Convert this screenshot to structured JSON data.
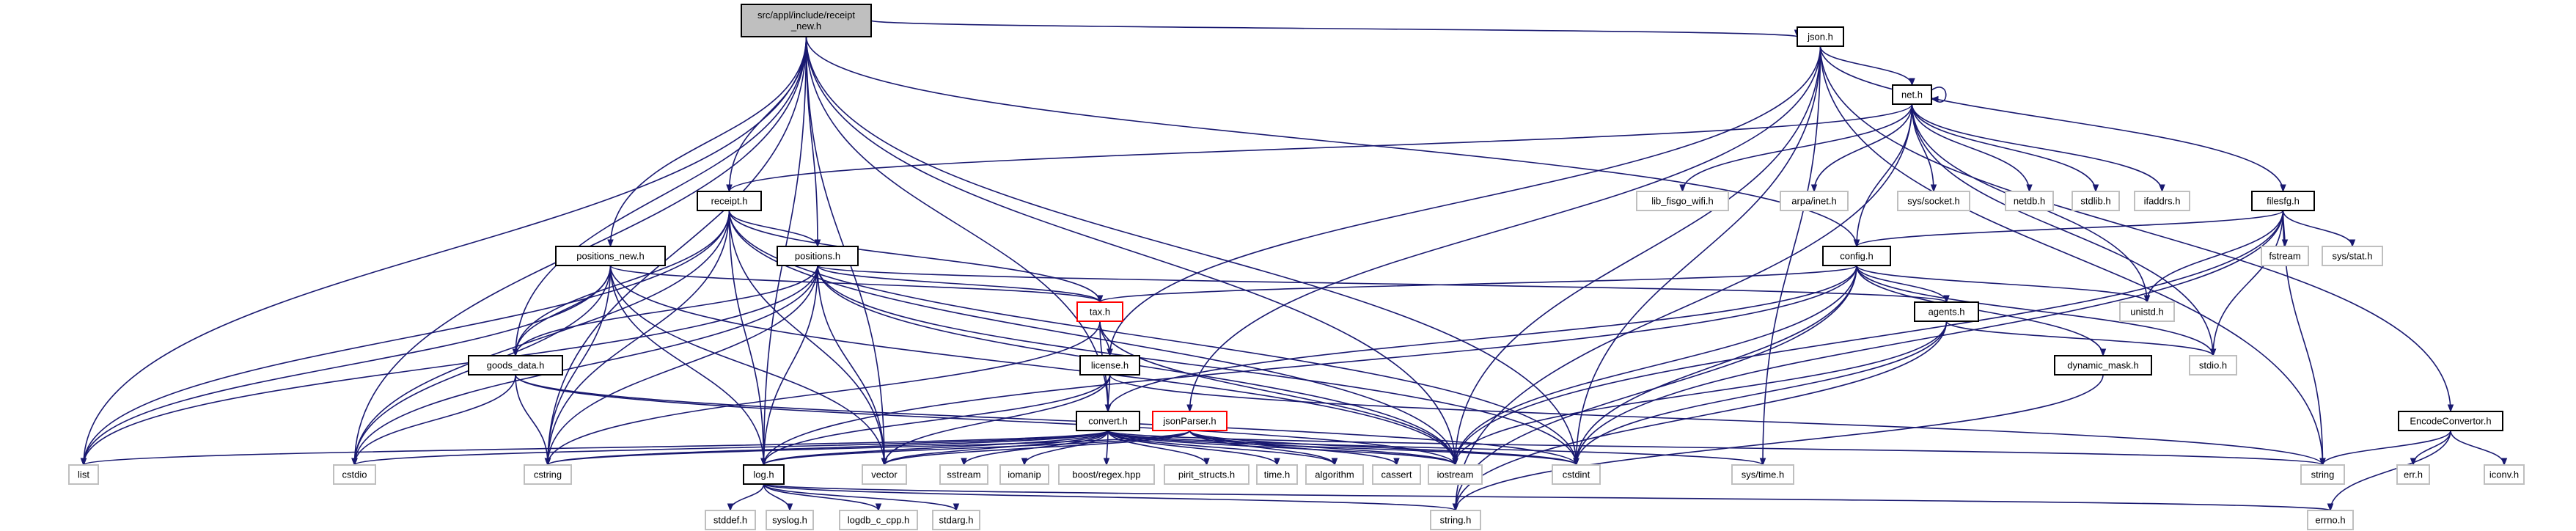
{
  "nodes": [
    {
      "id": "root",
      "label": "src/appl/include/receipt\n_new.h",
      "style": "root"
    },
    {
      "id": "json_h",
      "label": "json.h",
      "style": "normal"
    },
    {
      "id": "net_h",
      "label": "net.h",
      "style": "normal"
    },
    {
      "id": "receipt_h",
      "label": "receipt.h",
      "style": "normal"
    },
    {
      "id": "positions_new_h",
      "label": "positions_new.h",
      "style": "normal"
    },
    {
      "id": "positions_h",
      "label": "positions.h",
      "style": "normal"
    },
    {
      "id": "filesfg_h",
      "label": "filesfg.h",
      "style": "normal"
    },
    {
      "id": "config_h",
      "label": "config.h",
      "style": "normal"
    },
    {
      "id": "tax_h",
      "label": "tax.h",
      "style": "red"
    },
    {
      "id": "agents_h",
      "label": "agents.h",
      "style": "normal"
    },
    {
      "id": "goods_data_h",
      "label": "goods_data.h",
      "style": "normal"
    },
    {
      "id": "license_h",
      "label": "license.h",
      "style": "normal"
    },
    {
      "id": "dynamic_mask_h",
      "label": "dynamic_mask.h",
      "style": "normal"
    },
    {
      "id": "convert_h",
      "label": "convert.h",
      "style": "normal"
    },
    {
      "id": "jsonParser_h",
      "label": "jsonParser.h",
      "style": "red"
    },
    {
      "id": "EncodeConvertor_h",
      "label": "EncodeConvertor.h",
      "style": "normal"
    },
    {
      "id": "log_h",
      "label": "log.h",
      "style": "normal"
    },
    {
      "id": "lib_fisgo_wifi_h",
      "label": "lib_fisgo_wifi.h",
      "style": "leaf"
    },
    {
      "id": "arpa_inet_h",
      "label": "arpa/inet.h",
      "style": "leaf"
    },
    {
      "id": "sys_socket_h",
      "label": "sys/socket.h",
      "style": "leaf"
    },
    {
      "id": "netdb_h",
      "label": "netdb.h",
      "style": "leaf"
    },
    {
      "id": "stdlib_h",
      "label": "stdlib.h",
      "style": "leaf"
    },
    {
      "id": "ifaddrs_h",
      "label": "ifaddrs.h",
      "style": "leaf"
    },
    {
      "id": "fstream",
      "label": "fstream",
      "style": "leaf"
    },
    {
      "id": "sys_stat_h",
      "label": "sys/stat.h",
      "style": "leaf"
    },
    {
      "id": "unistd_h",
      "label": "unistd.h",
      "style": "leaf"
    },
    {
      "id": "stdio_h",
      "label": "stdio.h",
      "style": "leaf"
    },
    {
      "id": "list",
      "label": "list",
      "style": "leaf"
    },
    {
      "id": "cstdio",
      "label": "cstdio",
      "style": "leaf"
    },
    {
      "id": "cstring",
      "label": "cstring",
      "style": "leaf"
    },
    {
      "id": "vector",
      "label": "vector",
      "style": "leaf"
    },
    {
      "id": "sstream",
      "label": "sstream",
      "style": "leaf"
    },
    {
      "id": "iomanip",
      "label": "iomanip",
      "style": "leaf"
    },
    {
      "id": "boost_regex_hpp",
      "label": "boost/regex.hpp",
      "style": "leaf"
    },
    {
      "id": "pirit_structs_h",
      "label": "pirit_structs.h",
      "style": "leaf"
    },
    {
      "id": "time_h",
      "label": "time.h",
      "style": "leaf"
    },
    {
      "id": "algorithm",
      "label": "algorithm",
      "style": "leaf"
    },
    {
      "id": "cassert",
      "label": "cassert",
      "style": "leaf"
    },
    {
      "id": "iostream",
      "label": "iostream",
      "style": "leaf"
    },
    {
      "id": "cstdint",
      "label": "cstdint",
      "style": "leaf"
    },
    {
      "id": "sys_time_h",
      "label": "sys/time.h",
      "style": "leaf"
    },
    {
      "id": "string",
      "label": "string",
      "style": "leaf"
    },
    {
      "id": "err_h",
      "label": "err.h",
      "style": "leaf"
    },
    {
      "id": "iconv_h",
      "label": "iconv.h",
      "style": "leaf"
    },
    {
      "id": "stddef_h",
      "label": "stddef.h",
      "style": "leaf"
    },
    {
      "id": "syslog_h",
      "label": "syslog.h",
      "style": "leaf"
    },
    {
      "id": "logdb_c_cpp_h",
      "label": "logdb_c_cpp.h",
      "style": "leaf"
    },
    {
      "id": "stdarg_h",
      "label": "stdarg.h",
      "style": "leaf"
    },
    {
      "id": "string_h",
      "label": "string.h",
      "style": "leaf"
    },
    {
      "id": "errno_h",
      "label": "errno.h",
      "style": "leaf"
    }
  ],
  "edges": [
    [
      "root",
      "json_h"
    ],
    [
      "root",
      "receipt_h"
    ],
    [
      "root",
      "positions_new_h"
    ],
    [
      "root",
      "positions_h"
    ],
    [
      "root",
      "goods_data_h"
    ],
    [
      "root",
      "config_h"
    ],
    [
      "root",
      "convert_h"
    ],
    [
      "root",
      "log_h"
    ],
    [
      "root",
      "list"
    ],
    [
      "root",
      "cstdio"
    ],
    [
      "root",
      "cstring"
    ],
    [
      "root",
      "vector"
    ],
    [
      "root",
      "iostream"
    ],
    [
      "root",
      "cstdint"
    ],
    [
      "json_h",
      "net_h"
    ],
    [
      "json_h",
      "filesfg_h"
    ],
    [
      "json_h",
      "license_h"
    ],
    [
      "json_h",
      "jsonParser_h"
    ],
    [
      "json_h",
      "EncodeConvertor_h"
    ],
    [
      "json_h",
      "iostream"
    ],
    [
      "json_h",
      "cstdint"
    ],
    [
      "json_h",
      "string"
    ],
    [
      "json_h",
      "sys_time_h"
    ],
    [
      "net_h",
      "net_h"
    ],
    [
      "net_h",
      "receipt_h"
    ],
    [
      "net_h",
      "lib_fisgo_wifi_h"
    ],
    [
      "net_h",
      "arpa_inet_h"
    ],
    [
      "net_h",
      "sys_socket_h"
    ],
    [
      "net_h",
      "netdb_h"
    ],
    [
      "net_h",
      "stdlib_h"
    ],
    [
      "net_h",
      "ifaddrs_h"
    ],
    [
      "net_h",
      "unistd_h"
    ],
    [
      "net_h",
      "stdio_h"
    ],
    [
      "net_h",
      "config_h"
    ],
    [
      "net_h",
      "string_h"
    ],
    [
      "receipt_h",
      "positions_h"
    ],
    [
      "receipt_h",
      "goods_data_h"
    ],
    [
      "receipt_h",
      "tax_h"
    ],
    [
      "receipt_h",
      "log_h"
    ],
    [
      "receipt_h",
      "list"
    ],
    [
      "receipt_h",
      "cstdio"
    ],
    [
      "receipt_h",
      "cstring"
    ],
    [
      "receipt_h",
      "vector"
    ],
    [
      "receipt_h",
      "iostream"
    ],
    [
      "receipt_h",
      "cstdint"
    ],
    [
      "positions_new_h",
      "tax_h"
    ],
    [
      "positions_new_h",
      "goods_data_h"
    ],
    [
      "positions_new_h",
      "log_h"
    ],
    [
      "positions_new_h",
      "list"
    ],
    [
      "positions_new_h",
      "cstdio"
    ],
    [
      "positions_new_h",
      "cstring"
    ],
    [
      "positions_new_h",
      "vector"
    ],
    [
      "positions_new_h",
      "iostream"
    ],
    [
      "positions_h",
      "tax_h"
    ],
    [
      "positions_h",
      "goods_data_h"
    ],
    [
      "positions_h",
      "agents_h"
    ],
    [
      "positions_h",
      "log_h"
    ],
    [
      "positions_h",
      "list"
    ],
    [
      "positions_h",
      "cstdio"
    ],
    [
      "positions_h",
      "cstring"
    ],
    [
      "positions_h",
      "vector"
    ],
    [
      "positions_h",
      "iostream"
    ],
    [
      "positions_h",
      "cstdint"
    ],
    [
      "filesfg_h",
      "config_h"
    ],
    [
      "filesfg_h",
      "fstream"
    ],
    [
      "filesfg_h",
      "sys_stat_h"
    ],
    [
      "filesfg_h",
      "unistd_h"
    ],
    [
      "filesfg_h",
      "stdio_h"
    ],
    [
      "filesfg_h",
      "iostream"
    ],
    [
      "filesfg_h",
      "cstdint"
    ],
    [
      "filesfg_h",
      "string"
    ],
    [
      "config_h",
      "tax_h"
    ],
    [
      "config_h",
      "agents_h"
    ],
    [
      "config_h",
      "dynamic_mask_h"
    ],
    [
      "config_h",
      "convert_h"
    ],
    [
      "config_h",
      "unistd_h"
    ],
    [
      "config_h",
      "stdio_h"
    ],
    [
      "config_h",
      "log_h"
    ],
    [
      "config_h",
      "iostream"
    ],
    [
      "config_h",
      "cstdint"
    ],
    [
      "config_h",
      "string_h"
    ],
    [
      "tax_h",
      "license_h"
    ],
    [
      "tax_h",
      "convert_h"
    ],
    [
      "tax_h",
      "cstring"
    ],
    [
      "tax_h",
      "iostream"
    ],
    [
      "agents_h",
      "stdio_h"
    ],
    [
      "agents_h",
      "iostream"
    ],
    [
      "agents_h",
      "cstdint"
    ],
    [
      "agents_h",
      "string_h"
    ],
    [
      "goods_data_h",
      "cstdio"
    ],
    [
      "goods_data_h",
      "cstring"
    ],
    [
      "goods_data_h",
      "iostream"
    ],
    [
      "goods_data_h",
      "cstdint"
    ],
    [
      "license_h",
      "convert_h"
    ],
    [
      "license_h",
      "log_h"
    ],
    [
      "license_h",
      "vector"
    ],
    [
      "license_h",
      "string"
    ],
    [
      "dynamic_mask_h",
      "string_h"
    ],
    [
      "convert_h",
      "log_h"
    ],
    [
      "convert_h",
      "list"
    ],
    [
      "convert_h",
      "cstdio"
    ],
    [
      "convert_h",
      "cstring"
    ],
    [
      "convert_h",
      "vector"
    ],
    [
      "convert_h",
      "sstream"
    ],
    [
      "convert_h",
      "iomanip"
    ],
    [
      "convert_h",
      "boost_regex_hpp"
    ],
    [
      "convert_h",
      "pirit_structs_h"
    ],
    [
      "convert_h",
      "time_h"
    ],
    [
      "convert_h",
      "algorithm"
    ],
    [
      "convert_h",
      "iostream"
    ],
    [
      "convert_h",
      "cstdint"
    ],
    [
      "convert_h",
      "sys_time_h"
    ],
    [
      "convert_h",
      "string"
    ],
    [
      "jsonParser_h",
      "log_h"
    ],
    [
      "jsonParser_h",
      "vector"
    ],
    [
      "jsonParser_h",
      "algorithm"
    ],
    [
      "jsonParser_h",
      "cassert"
    ],
    [
      "jsonParser_h",
      "iostream"
    ],
    [
      "jsonParser_h",
      "cstdint"
    ],
    [
      "jsonParser_h",
      "cstring"
    ],
    [
      "EncodeConvertor_h",
      "string"
    ],
    [
      "EncodeConvertor_h",
      "err_h"
    ],
    [
      "EncodeConvertor_h",
      "iconv_h"
    ],
    [
      "EncodeConvertor_h",
      "errno_h"
    ],
    [
      "log_h",
      "stddef_h"
    ],
    [
      "log_h",
      "syslog_h"
    ],
    [
      "log_h",
      "logdb_c_cpp_h"
    ],
    [
      "log_h",
      "stdarg_h"
    ],
    [
      "log_h",
      "string_h"
    ],
    [
      "log_h",
      "errno_h"
    ]
  ]
}
